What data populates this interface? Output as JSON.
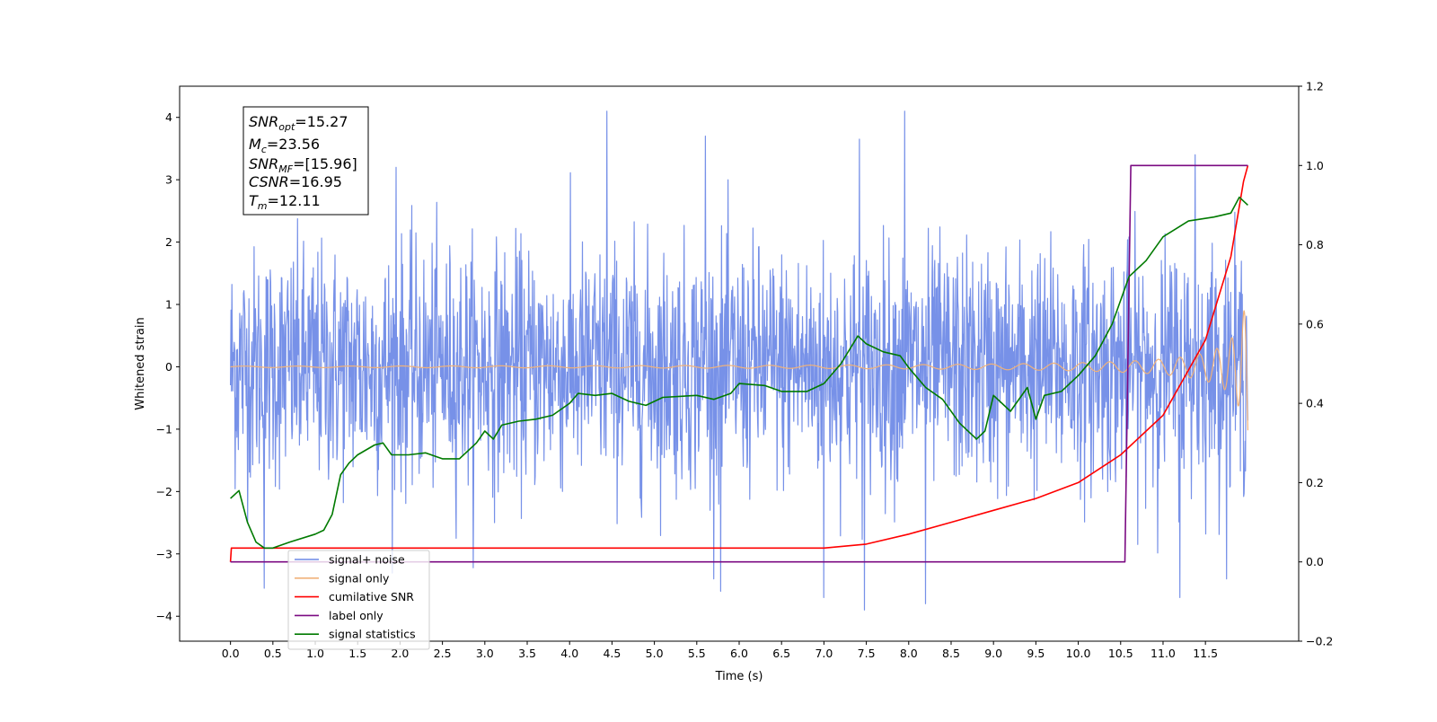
{
  "chart_data": {
    "type": "line",
    "xlabel": "Time (s)",
    "ylabel": "Whitened strain",
    "xlim": [
      -0.6,
      12.6
    ],
    "ylim": [
      -4.4,
      4.5
    ],
    "ylim_right": [
      -0.2,
      1.2
    ],
    "x_ticks": [
      0.0,
      0.5,
      1.0,
      1.5,
      2.0,
      2.5,
      3.0,
      3.5,
      4.0,
      4.5,
      5.0,
      5.5,
      6.0,
      6.5,
      7.0,
      7.5,
      8.0,
      8.5,
      9.0,
      9.5,
      10.0,
      10.5,
      11.0,
      11.5
    ],
    "x_tick_labels": [
      "0.0",
      "0.5",
      "1.0",
      "1.5",
      "2.0",
      "2.5",
      "3.0",
      "3.5",
      "4.0",
      "4.5",
      "5.0",
      "5.5",
      "6.0",
      "6.5",
      "7.0",
      "7.5",
      "8.0",
      "8.5",
      "9.0",
      "9.5",
      "10.0",
      "10.5",
      "11.0",
      "11.5"
    ],
    "y_ticks": [
      -4,
      -3,
      -2,
      -1,
      0,
      1,
      2,
      3,
      4
    ],
    "y_tick_labels": [
      "−4",
      "−3",
      "−2",
      "−1",
      "0",
      "1",
      "2",
      "3",
      "4"
    ],
    "y_right_ticks": [
      -0.2,
      0.0,
      0.2,
      0.4,
      0.6,
      0.8,
      1.0,
      1.2
    ],
    "y_right_tick_labels": [
      "−0.2",
      "0.0",
      "0.2",
      "0.4",
      "0.6",
      "0.8",
      "1.0",
      "1.2"
    ],
    "grid": false,
    "legend_position": "bottom-left",
    "series": [
      {
        "name": "signal+ noise",
        "color": "#6b88e6",
        "axis": "left",
        "kind": "noise",
        "x_range": [
          0.0,
          12.0
        ],
        "std": 0.95,
        "spikes": [
          [
            4.44,
            4.1
          ],
          [
            7.95,
            4.1
          ],
          [
            7.42,
            3.65
          ],
          [
            5.6,
            3.7
          ],
          [
            1.95,
            3.2
          ],
          [
            11.38,
            3.4
          ],
          [
            7.48,
            -3.9
          ],
          [
            8.2,
            -3.8
          ],
          [
            11.2,
            -3.7
          ],
          [
            7.0,
            -3.7
          ],
          [
            0.4,
            -3.55
          ],
          [
            5.78,
            -3.6
          ]
        ]
      },
      {
        "name": "signal only",
        "color": "#f0b27a",
        "axis": "left",
        "kind": "chirp",
        "merger_time": 12.11
      },
      {
        "name": "cumilative SNR",
        "color": "#ff0000",
        "axis": "right",
        "points": [
          [
            0.0,
            0.0
          ],
          [
            0.01,
            0.035
          ],
          [
            7.0,
            0.035
          ],
          [
            7.5,
            0.045
          ],
          [
            8.0,
            0.07
          ],
          [
            8.5,
            0.1
          ],
          [
            9.0,
            0.13
          ],
          [
            9.5,
            0.16
          ],
          [
            10.0,
            0.2
          ],
          [
            10.5,
            0.27
          ],
          [
            11.0,
            0.37
          ],
          [
            11.5,
            0.56
          ],
          [
            11.8,
            0.77
          ],
          [
            11.95,
            0.96
          ],
          [
            12.0,
            1.0
          ]
        ]
      },
      {
        "name": "label only",
        "color": "#7b0a82",
        "axis": "right",
        "points": [
          [
            0.0,
            0.0
          ],
          [
            10.55,
            0.0
          ],
          [
            10.62,
            1.0
          ],
          [
            12.0,
            1.0
          ]
        ]
      },
      {
        "name": "signal statistics",
        "color": "#007a00",
        "axis": "right",
        "points": [
          [
            0.0,
            0.16
          ],
          [
            0.1,
            0.18
          ],
          [
            0.2,
            0.1
          ],
          [
            0.3,
            0.05
          ],
          [
            0.4,
            0.035
          ],
          [
            0.5,
            0.035
          ],
          [
            0.7,
            0.05
          ],
          [
            1.0,
            0.07
          ],
          [
            1.1,
            0.08
          ],
          [
            1.2,
            0.12
          ],
          [
            1.3,
            0.22
          ],
          [
            1.4,
            0.25
          ],
          [
            1.5,
            0.27
          ],
          [
            1.7,
            0.295
          ],
          [
            1.8,
            0.3
          ],
          [
            1.9,
            0.27
          ],
          [
            2.1,
            0.27
          ],
          [
            2.3,
            0.275
          ],
          [
            2.5,
            0.26
          ],
          [
            2.7,
            0.26
          ],
          [
            2.9,
            0.3
          ],
          [
            3.0,
            0.33
          ],
          [
            3.1,
            0.31
          ],
          [
            3.2,
            0.345
          ],
          [
            3.4,
            0.355
          ],
          [
            3.6,
            0.36
          ],
          [
            3.8,
            0.37
          ],
          [
            4.0,
            0.4
          ],
          [
            4.1,
            0.425
          ],
          [
            4.3,
            0.42
          ],
          [
            4.5,
            0.425
          ],
          [
            4.7,
            0.405
          ],
          [
            4.9,
            0.395
          ],
          [
            5.1,
            0.415
          ],
          [
            5.5,
            0.42
          ],
          [
            5.7,
            0.41
          ],
          [
            5.9,
            0.425
          ],
          [
            6.0,
            0.45
          ],
          [
            6.3,
            0.445
          ],
          [
            6.5,
            0.43
          ],
          [
            6.8,
            0.43
          ],
          [
            7.0,
            0.45
          ],
          [
            7.2,
            0.5
          ],
          [
            7.4,
            0.57
          ],
          [
            7.5,
            0.55
          ],
          [
            7.7,
            0.53
          ],
          [
            7.9,
            0.52
          ],
          [
            8.0,
            0.49
          ],
          [
            8.2,
            0.44
          ],
          [
            8.4,
            0.41
          ],
          [
            8.6,
            0.35
          ],
          [
            8.8,
            0.31
          ],
          [
            8.9,
            0.33
          ],
          [
            9.0,
            0.42
          ],
          [
            9.2,
            0.38
          ],
          [
            9.4,
            0.44
          ],
          [
            9.5,
            0.36
          ],
          [
            9.6,
            0.42
          ],
          [
            9.8,
            0.43
          ],
          [
            10.0,
            0.47
          ],
          [
            10.2,
            0.52
          ],
          [
            10.4,
            0.6
          ],
          [
            10.6,
            0.72
          ],
          [
            10.8,
            0.76
          ],
          [
            11.0,
            0.82
          ],
          [
            11.3,
            0.86
          ],
          [
            11.6,
            0.87
          ],
          [
            11.8,
            0.88
          ],
          [
            11.9,
            0.92
          ],
          [
            12.0,
            0.9
          ]
        ]
      }
    ],
    "legend_entries": [
      "signal+ noise",
      "signal only",
      "cumilative SNR",
      "label only",
      "signal statistics"
    ],
    "annotations": {
      "snr_opt": {
        "name": "SNR",
        "sub": "opt",
        "value": "=15.27"
      },
      "mc": {
        "name": "M",
        "sub": "c",
        "value": "=23.56"
      },
      "snr_mf": {
        "name": "SNR",
        "sub": "MF",
        "value": "=[15.96]"
      },
      "csnr": {
        "name": "CSNR",
        "value": "=16.95"
      },
      "tm": {
        "name": "T",
        "sub": "m",
        "value": "=12.11"
      }
    }
  }
}
